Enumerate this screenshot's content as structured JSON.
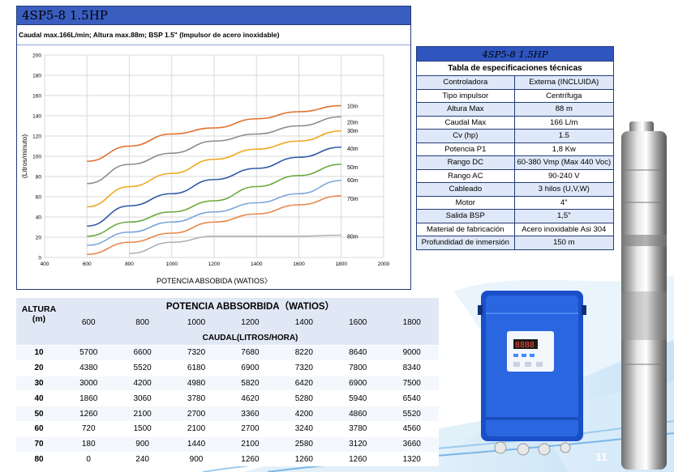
{
  "page_number": "11",
  "chart_panel": {
    "heading": "4SP5-8   1.5HP",
    "subheading": "Caudal max.166L/min;  Altura max.88m; BSP 1.5\" (Impulsor de acero inoxidable)"
  },
  "chart_data": {
    "type": "line",
    "xlabel": "POTENCIA ABSOBIDA (WATIOS〉",
    "ylabel": "(Litros/minuto)",
    "xlim": [
      400,
      2000
    ],
    "ylim": [
      0,
      200
    ],
    "x_ticks": [
      "400",
      "600",
      "800",
      "1000",
      "1200",
      "1400",
      "1600",
      "1800",
      "2000"
    ],
    "y_ticks": [
      "0",
      "20",
      "40",
      "60",
      "80",
      "100",
      "120",
      "140",
      "160",
      "180",
      "200"
    ],
    "grid": true,
    "x": [
      600,
      800,
      1000,
      1200,
      1400,
      1600,
      1800
    ],
    "series": [
      {
        "name": "10m",
        "color": "#e0702b",
        "values": [
          95,
          110,
          122,
          128,
          137,
          144,
          150
        ]
      },
      {
        "name": "20m",
        "color": "#8c8c8c",
        "values": [
          73,
          92,
          103,
          115,
          122,
          130,
          139
        ]
      },
      {
        "name": "30m",
        "color": "#f0a820",
        "values": [
          50,
          70,
          83,
          97,
          107,
          115,
          125
        ]
      },
      {
        "name": "40m",
        "color": "#2f5aa8",
        "values": [
          31,
          51,
          63,
          77,
          88,
          99,
          109
        ]
      },
      {
        "name": "50m",
        "color": "#6aaa3c",
        "values": [
          21,
          35,
          45,
          56,
          70,
          81,
          92
        ]
      },
      {
        "name": "60m",
        "color": "#7aa6dc",
        "values": [
          12,
          25,
          35,
          45,
          54,
          63,
          76
        ]
      },
      {
        "name": "70m",
        "color": "#e8884a",
        "values": [
          3,
          15,
          24,
          35,
          43,
          52,
          61
        ]
      },
      {
        "name": "80m",
        "color": "#b0b0b0",
        "values": [
          null,
          4,
          15,
          21,
          21,
          21,
          22
        ]
      }
    ]
  },
  "spec_table": {
    "title": "4SP5-8 1.5HP",
    "subtitle": "Tabla de especificaciones técnicas",
    "rows": [
      {
        "label": "Controladora",
        "value": "Externa (INCLUIDA)"
      },
      {
        "label": "Tipo impulsor",
        "value": "Centrífuga"
      },
      {
        "label": "Altura Max",
        "value": "88 m"
      },
      {
        "label": "Caudal Max",
        "value": "166 L/m"
      },
      {
        "label": "Cv (hp)",
        "value": "1.5"
      },
      {
        "label": "Potencia P1",
        "value": "1,8 Kw"
      },
      {
        "label": "Rango DC",
        "value": "60-380 Vmp (Max 440 Voc)"
      },
      {
        "label": "Rango AC",
        "value": "90-240 V"
      },
      {
        "label": "Cableado",
        "value": "3 hilos (U,V,W)"
      },
      {
        "label": "Motor",
        "value": "4\""
      },
      {
        "label": "Salida BSP",
        "value": "1,5\""
      },
      {
        "label": "Material de fabricación",
        "value": "Acero inoxidable Asi 304"
      },
      {
        "label": "Profundidad de inmersión",
        "value": "150 m"
      }
    ]
  },
  "flow_table": {
    "altura_label": "ALTURA",
    "altura_unit": "(m)",
    "power_header": "POTENCIA ABBSORBIDA（WATIOS）",
    "caudal_header": "CAUDAL(LITROS/HORA)",
    "powers": [
      "600",
      "800",
      "1000",
      "1200",
      "1400",
      "1600",
      "1800"
    ],
    "rows": [
      {
        "altura": "10",
        "values": [
          "5700",
          "6600",
          "7320",
          "7680",
          "8220",
          "8640",
          "9000"
        ]
      },
      {
        "altura": "20",
        "values": [
          "4380",
          "5520",
          "6180",
          "6900",
          "7320",
          "7800",
          "8340"
        ]
      },
      {
        "altura": "30",
        "values": [
          "3000",
          "4200",
          "4980",
          "5820",
          "6420",
          "6900",
          "7500"
        ]
      },
      {
        "altura": "40",
        "values": [
          "1860",
          "3060",
          "3780",
          "4620",
          "5280",
          "5940",
          "6540"
        ]
      },
      {
        "altura": "50",
        "values": [
          "1260",
          "2100",
          "2700",
          "3360",
          "4200",
          "4860",
          "5520"
        ]
      },
      {
        "altura": "60",
        "values": [
          "720",
          "1500",
          "2100",
          "2700",
          "3240",
          "3780",
          "4560"
        ]
      },
      {
        "altura": "70",
        "values": [
          "180",
          "900",
          "1440",
          "2100",
          "2580",
          "3120",
          "3660"
        ]
      },
      {
        "altura": "80",
        "values": [
          "0",
          "240",
          "900",
          "1260",
          "1260",
          "1260",
          "1320"
        ]
      }
    ]
  },
  "controller_display": "8888",
  "colors": {
    "accent": "#2f55bf",
    "border": "#243b78",
    "controller": "#1f5fd6"
  }
}
